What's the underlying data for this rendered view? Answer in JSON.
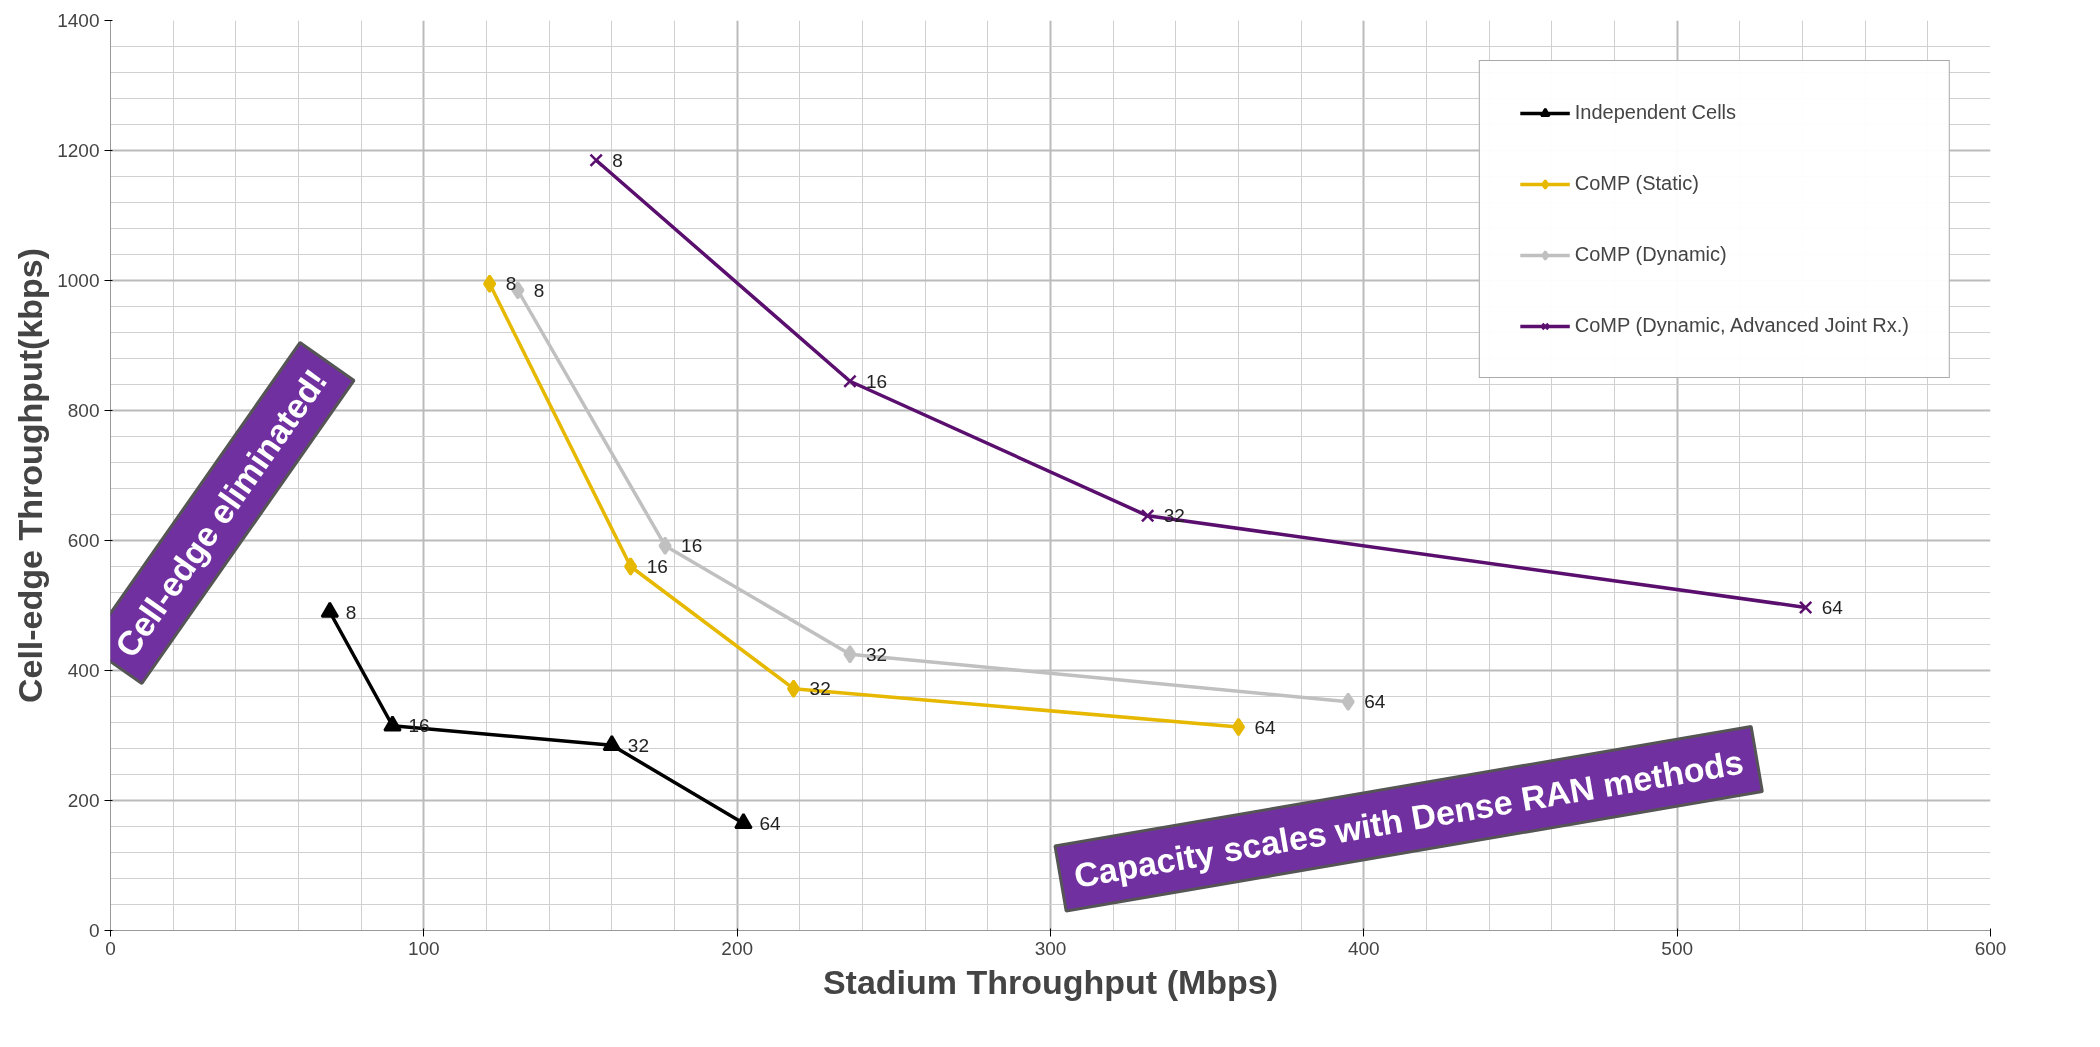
{
  "chart_data": {
    "type": "line",
    "xlabel": "Stadium Throughput (Mbps)",
    "ylabel": "Cell-edge Throughput(kbps)",
    "xlim": [
      0,
      600
    ],
    "xticks": [
      0,
      100,
      200,
      300,
      400,
      500,
      600
    ],
    "ylim": [
      0,
      1400
    ],
    "yticks": [
      0,
      200,
      400,
      600,
      800,
      1000,
      1200,
      1400
    ],
    "grid": true,
    "legend": "top right",
    "annotations": [
      "Cell-edge eliminated!",
      "Capacity scales with Dense RAN methods",
      {
        "text": "8",
        "x": 70,
        "y": 490
      },
      {
        "text": "16",
        "x": 90,
        "y": 315
      },
      {
        "text": "32",
        "x": 160,
        "y": 285
      },
      {
        "text": "64",
        "x": 202,
        "y": 165
      },
      {
        "text": "8",
        "x": 121,
        "y": 995
      },
      {
        "text": "16",
        "x": 166,
        "y": 560
      },
      {
        "text": "32",
        "x": 218,
        "y": 372
      },
      {
        "text": "64",
        "x": 360,
        "y": 313
      },
      {
        "text": "8",
        "x": 130,
        "y": 985
      },
      {
        "text": "16",
        "x": 177,
        "y": 592
      },
      {
        "text": "32",
        "x": 236,
        "y": 425
      },
      {
        "text": "64",
        "x": 395,
        "y": 352
      },
      {
        "text": "8",
        "x": 155,
        "y": 1185
      },
      {
        "text": "16",
        "x": 236,
        "y": 845
      },
      {
        "text": "32",
        "x": 331,
        "y": 638
      },
      {
        "text": "64",
        "x": 541,
        "y": 497
      }
    ],
    "series": [
      {
        "name": "Independent Cells",
        "color": "#000000",
        "marker": "triangle",
        "x": [
          70,
          90,
          160,
          202
        ],
        "values": [
          490,
          315,
          285,
          165
        ]
      },
      {
        "name": "CoMP (Static)",
        "color": "#e6b800",
        "marker": "diamond",
        "x": [
          121,
          166,
          218,
          360
        ],
        "values": [
          995,
          560,
          372,
          313
        ]
      },
      {
        "name": "CoMP (Dynamic)",
        "color": "#c0c0c0",
        "marker": "diamond",
        "x": [
          130,
          177,
          236,
          395
        ],
        "values": [
          985,
          592,
          425,
          352
        ]
      },
      {
        "name": "CoMP (Dynamic, Advanced Joint Rx.)",
        "color": "#5a0f6e",
        "marker": "x",
        "x": [
          155,
          236,
          331,
          541
        ],
        "values": [
          1185,
          845,
          638,
          497
        ]
      }
    ]
  }
}
